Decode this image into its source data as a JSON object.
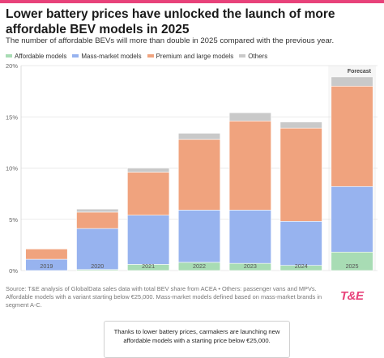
{
  "accent_color": "#e8427a",
  "header": {
    "title": "Lower battery prices have unlocked the launch of more affordable BEV models in 2025",
    "subtitle": "The number of affordable BEVs will more than double in 2025 compared with the previous year."
  },
  "chart_data": {
    "type": "bar",
    "stacked": true,
    "categories": [
      "2019",
      "2020",
      "2021",
      "2022",
      "2023",
      "2024",
      "2025"
    ],
    "series": [
      {
        "name": "Affordable models",
        "color": "#a8dcb4",
        "values": [
          0.0,
          0.1,
          0.6,
          0.8,
          0.7,
          0.5,
          1.8
        ]
      },
      {
        "name": "Mass-market models",
        "color": "#97b3ef",
        "values": [
          1.1,
          4.0,
          4.8,
          5.1,
          5.2,
          4.3,
          6.4
        ]
      },
      {
        "name": "Premium and large models",
        "color": "#f0a37e",
        "values": [
          1.0,
          1.6,
          4.2,
          6.9,
          8.7,
          9.1,
          9.8
        ]
      },
      {
        "name": "Others",
        "color": "#c9c9c9",
        "values": [
          0.0,
          0.3,
          0.4,
          0.6,
          0.8,
          0.6,
          0.9
        ]
      }
    ],
    "ylim": [
      0,
      20
    ],
    "yticks": [
      0,
      5,
      10,
      15,
      20
    ],
    "ytick_labels": [
      "0%",
      "5%",
      "10%",
      "15%",
      "20%"
    ],
    "forecast_label": "Forecast",
    "forecast_category": "2025",
    "legend_position": "top-left",
    "grid": true
  },
  "footer": {
    "source": "Source: T&E analysis of GlobalData sales data with total BEV share from ACEA • Others: passenger vans and MPVs. Affordable models with a variant starting below €25,000. Mass-market models defined based on mass-market brands in segment A-C.",
    "logo_text": "T&E",
    "callout": "Thanks to lower battery prices, carmakers are launching new affordable models with a starting price below €25,000."
  }
}
